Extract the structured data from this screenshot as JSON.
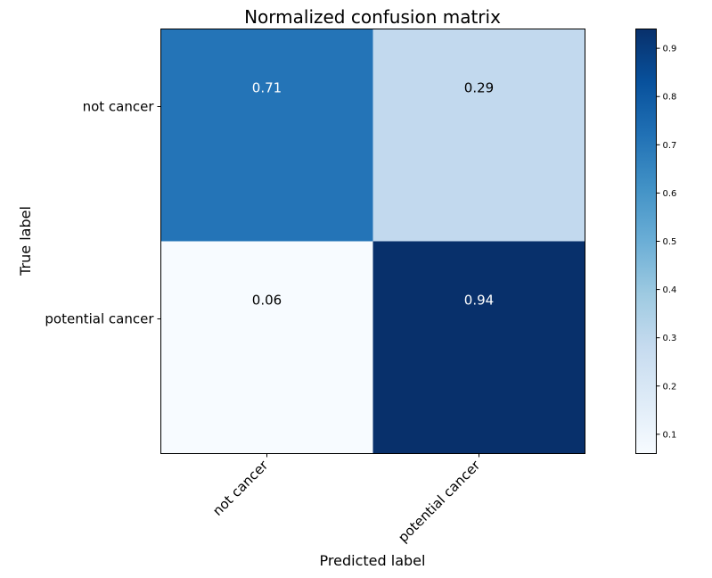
{
  "chart_data": {
    "type": "heatmap",
    "title": "Normalized confusion matrix",
    "xlabel": "Predicted label",
    "ylabel": "True label",
    "x_categories": [
      "not cancer",
      "potential cancer"
    ],
    "y_categories": [
      "not cancer",
      "potential cancer"
    ],
    "values": [
      [
        0.71,
        0.29
      ],
      [
        0.06,
        0.94
      ]
    ],
    "cell_labels": [
      [
        "0.71",
        "0.29"
      ],
      [
        "0.06",
        "0.94"
      ]
    ],
    "colormap": "Blues",
    "colorbar": {
      "range": [
        0.06,
        0.94
      ],
      "ticks": [
        0.1,
        0.2,
        0.3,
        0.4,
        0.5,
        0.6,
        0.7,
        0.8,
        0.9
      ],
      "tick_labels": [
        "0.1",
        "0.2",
        "0.3",
        "0.4",
        "0.5",
        "0.6",
        "0.7",
        "0.8",
        "0.9"
      ]
    },
    "grid": false
  }
}
